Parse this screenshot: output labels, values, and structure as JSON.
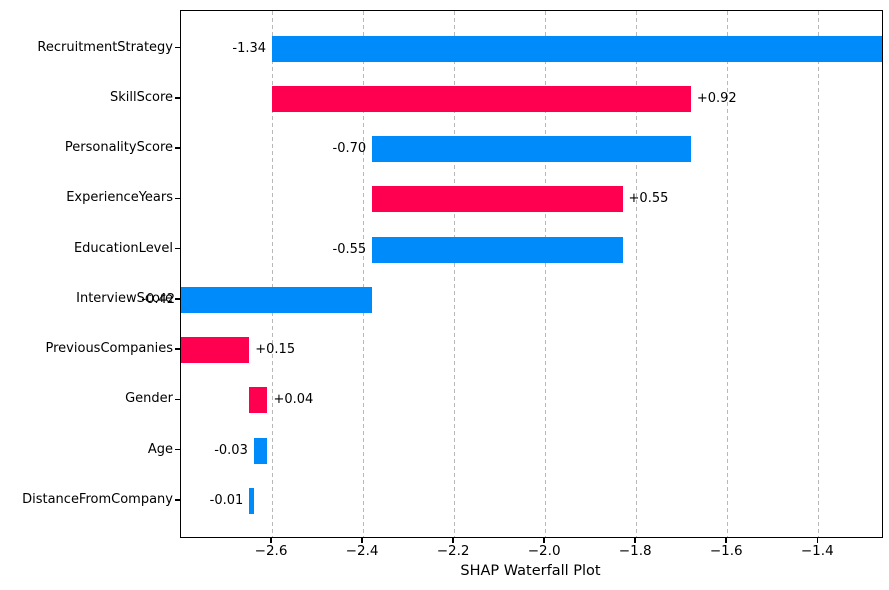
{
  "chart_data": {
    "type": "bar",
    "subtype": "shap-waterfall",
    "orientation": "horizontal",
    "title": "",
    "xlabel": "SHAP Waterfall Plot",
    "ylabel": "",
    "features": [
      "RecruitmentStrategy",
      "SkillScore",
      "PersonalityScore",
      "ExperienceYears",
      "EducationLevel",
      "InterviewScore",
      "PreviousCompanies",
      "Gender",
      "Age",
      "DistanceFromCompany"
    ],
    "shap_values": [
      -1.34,
      0.92,
      -0.7,
      0.55,
      -0.55,
      -0.42,
      0.15,
      0.04,
      -0.03,
      -0.01
    ],
    "value_labels": [
      "-1.34",
      "+0.92",
      "-0.70",
      "+0.55",
      "-0.55",
      "-0.42",
      "+0.15",
      "+0.04",
      "-0.03",
      "-0.01"
    ],
    "bar_segments": [
      [
        -2.6,
        -1.26
      ],
      [
        -2.6,
        -1.68
      ],
      [
        -2.38,
        -1.68
      ],
      [
        -2.38,
        -1.83
      ],
      [
        -2.38,
        -1.83
      ],
      [
        -2.8,
        -2.38
      ],
      [
        -2.8,
        -2.65
      ],
      [
        -2.65,
        -2.61
      ],
      [
        -2.64,
        -2.61
      ],
      [
        -2.65,
        -2.64
      ]
    ],
    "xlim": [
      -2.8,
      -1.26
    ],
    "x_ticks": [
      -2.6,
      -2.4,
      -2.2,
      -2.0,
      -1.8,
      -1.6,
      -1.4
    ],
    "x_tick_labels": [
      "−2.6",
      "−2.4",
      "−2.2",
      "−2.0",
      "−1.8",
      "−1.6",
      "−1.4"
    ],
    "grid": "vertical-dashed",
    "legend": null,
    "colors": {
      "positive": "#ff0051",
      "negative": "#008bfb",
      "grid": "#b8b8b8",
      "spine": "#000000",
      "text": "#000000",
      "background": "#ffffff"
    }
  }
}
